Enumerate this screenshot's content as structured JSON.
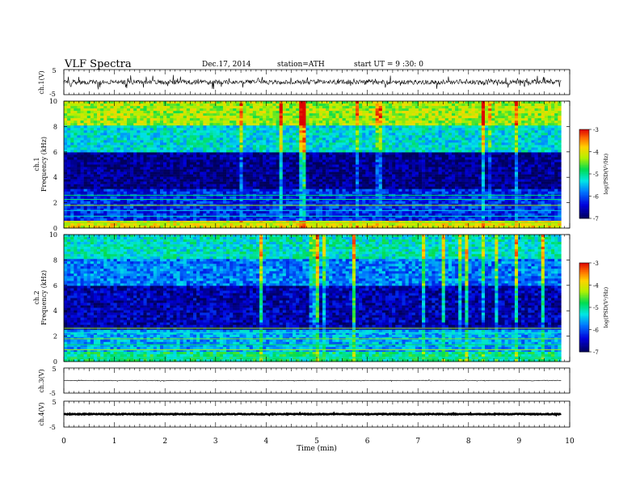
{
  "header": {
    "title": "VLF  Spectra",
    "date": "Dec.17, 2014",
    "station": "station=ATH",
    "start": "start  UT  =   9 :30: 0"
  },
  "chart_data": [
    {
      "type": "line",
      "ylabel": "ch.1(V)",
      "ylim": [
        -5,
        5
      ],
      "yticks": [
        "5",
        "-5"
      ],
      "signal": "noisy waveform centred near 0 V, amplitude about 1-2 V with spikes"
    },
    {
      "type": "heatmap",
      "ylabel": "ch.1\nFrequency  (kHz)",
      "ylim": [
        0,
        10
      ],
      "yticks": [
        "0",
        "2",
        "4",
        "6",
        "8",
        "10"
      ],
      "colorbar": {
        "label": "log(PSD(V²/Hz)",
        "range": [
          -7,
          -3
        ],
        "ticks": [
          "-3",
          "-4",
          "-5",
          "-6",
          "-7"
        ]
      },
      "description_levels": [
        {
          "band_khz": [
            0,
            0.6
          ],
          "level": -4
        },
        {
          "band_khz": [
            0.6,
            3
          ],
          "level": -6.2
        },
        {
          "band_khz": [
            3,
            6
          ],
          "level": -6.8
        },
        {
          "band_khz": [
            6,
            8
          ],
          "level": -5.3
        },
        {
          "band_khz": [
            8,
            10
          ],
          "level": -4.3
        }
      ]
    },
    {
      "type": "heatmap",
      "ylabel": "ch.2\nFrequency  (kHz)",
      "ylim": [
        0,
        10
      ],
      "yticks": [
        "0",
        "2",
        "4",
        "6",
        "8",
        "10"
      ],
      "colorbar": {
        "label": "log(PSD(V²/Hz)",
        "range": [
          -7,
          -3
        ],
        "ticks": [
          "-3",
          "-4",
          "-5",
          "-6",
          "-7"
        ]
      },
      "description_levels": [
        {
          "band_khz": [
            0,
            0.8
          ],
          "level": -5
        },
        {
          "band_khz": [
            0.8,
            2.5
          ],
          "level": -5.6
        },
        {
          "band_khz": [
            2.5,
            6
          ],
          "level": -6.6
        },
        {
          "band_khz": [
            6,
            8
          ],
          "level": -5.8
        },
        {
          "band_khz": [
            8,
            10
          ],
          "level": -5.2
        }
      ]
    },
    {
      "type": "line",
      "ylabel": "ch.3(V)",
      "ylim": [
        -5,
        5
      ],
      "yticks": [
        "5",
        "-5"
      ],
      "signal": "nearly flat trace near 0 V"
    },
    {
      "type": "line",
      "ylabel": "ch.4(V)",
      "ylim": [
        -5,
        5
      ],
      "yticks": [
        "5",
        "-5"
      ],
      "signal": "thick flat trace near 0 V"
    }
  ],
  "xaxis": {
    "label": "Time  (min)",
    "xlim": [
      0,
      10
    ],
    "ticks": [
      "0",
      "1",
      "2",
      "3",
      "4",
      "5",
      "6",
      "7",
      "8",
      "9",
      "10"
    ],
    "data_end_min": 9.83
  }
}
